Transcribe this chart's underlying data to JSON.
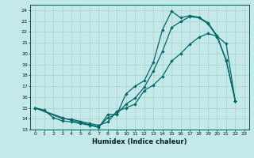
{
  "xlabel": "Humidex (Indice chaleur)",
  "bg_color": "#c5e8e8",
  "grid_color": "#a8d0d0",
  "line_color": "#006868",
  "xlim": [
    -0.5,
    23.5
  ],
  "ylim": [
    13,
    24.5
  ],
  "yticks": [
    13,
    14,
    15,
    16,
    17,
    18,
    19,
    20,
    21,
    22,
    23,
    24
  ],
  "xticks": [
    0,
    1,
    2,
    3,
    4,
    5,
    6,
    7,
    8,
    9,
    10,
    11,
    12,
    13,
    14,
    15,
    16,
    17,
    18,
    19,
    20,
    21,
    22,
    23
  ],
  "line1_x": [
    0,
    1,
    2,
    3,
    4,
    5,
    6,
    7,
    8,
    9,
    10,
    11,
    12,
    13,
    14,
    15,
    16,
    17,
    18,
    19,
    20,
    21,
    22
  ],
  "line1_y": [
    15.0,
    14.8,
    14.1,
    13.8,
    13.7,
    13.55,
    13.4,
    13.2,
    14.4,
    14.4,
    16.3,
    17.0,
    17.5,
    19.2,
    22.2,
    23.9,
    23.3,
    23.5,
    23.35,
    22.85,
    21.65,
    19.4,
    15.65
  ],
  "line2_x": [
    0,
    3,
    4,
    5,
    6,
    7,
    8,
    9,
    10,
    11,
    12,
    13,
    14,
    15,
    16,
    17,
    18,
    19,
    20,
    21,
    22
  ],
  "line2_y": [
    15.0,
    14.0,
    13.95,
    13.75,
    13.55,
    13.4,
    13.7,
    14.7,
    15.0,
    15.35,
    16.6,
    17.1,
    17.9,
    19.3,
    20.0,
    20.85,
    21.5,
    21.85,
    21.6,
    20.9,
    15.6
  ],
  "line3_x": [
    0,
    3,
    4,
    5,
    6,
    7,
    8,
    9,
    10,
    11,
    12,
    13,
    14,
    15,
    16,
    17,
    18,
    19,
    20,
    21,
    22
  ],
  "line3_y": [
    15.0,
    14.1,
    13.85,
    13.65,
    13.45,
    13.25,
    14.1,
    14.45,
    15.35,
    15.9,
    16.9,
    18.4,
    20.2,
    22.4,
    22.95,
    23.4,
    23.3,
    22.75,
    21.55,
    19.35,
    15.65
  ]
}
